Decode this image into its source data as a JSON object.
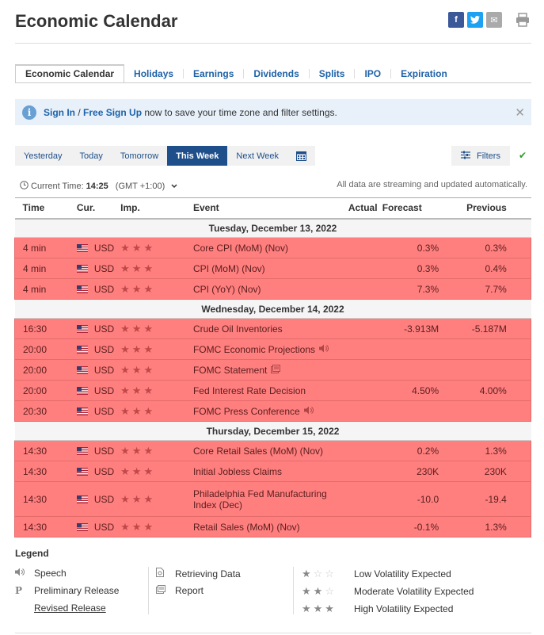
{
  "page": {
    "title": "Economic Calendar"
  },
  "share": {
    "facebook": "f",
    "twitter": "t",
    "email": "✉"
  },
  "tabs": [
    {
      "label": "Economic Calendar"
    },
    {
      "label": "Holidays"
    },
    {
      "label": "Earnings"
    },
    {
      "label": "Dividends"
    },
    {
      "label": "Splits"
    },
    {
      "label": "IPO"
    },
    {
      "label": "Expiration"
    }
  ],
  "notice": {
    "sign_in": "Sign In",
    "slash": " / ",
    "signup": "Free Sign Up",
    "text": " now to save your time zone and filter settings."
  },
  "datebar": [
    {
      "label": "Yesterday"
    },
    {
      "label": "Today"
    },
    {
      "label": "Tomorrow"
    },
    {
      "label": "This Week"
    },
    {
      "label": "Next Week"
    }
  ],
  "filters": {
    "label": "Filters"
  },
  "current_time": {
    "label": "Current Time:",
    "value": "14:25",
    "tz": "(GMT +1:00)"
  },
  "stream_note": "All data are streaming and updated automatically.",
  "columns": {
    "time": "Time",
    "cur": "Cur.",
    "imp": "Imp.",
    "event": "Event",
    "actual": "Actual",
    "forecast": "Forecast",
    "previous": "Previous"
  },
  "days": [
    {
      "date": "Tuesday, December 13, 2022",
      "events": [
        {
          "time": "4 min",
          "cur": "USD",
          "event": "Core CPI (MoM) (Nov)",
          "icon": "",
          "actual": "",
          "forecast": "0.3%",
          "previous": "0.3%"
        },
        {
          "time": "4 min",
          "cur": "USD",
          "event": "CPI (MoM) (Nov)",
          "icon": "",
          "actual": "",
          "forecast": "0.3%",
          "previous": "0.4%"
        },
        {
          "time": "4 min",
          "cur": "USD",
          "event": "CPI (YoY) (Nov)",
          "icon": "",
          "actual": "",
          "forecast": "7.3%",
          "previous": "7.7%"
        }
      ]
    },
    {
      "date": "Wednesday, December 14, 2022",
      "events": [
        {
          "time": "16:30",
          "cur": "USD",
          "event": "Crude Oil Inventories",
          "icon": "",
          "actual": "",
          "forecast": "-3.913M",
          "previous": "-5.187M"
        },
        {
          "time": "20:00",
          "cur": "USD",
          "event": "FOMC Economic Projections",
          "icon": "speech",
          "actual": "",
          "forecast": "",
          "previous": ""
        },
        {
          "time": "20:00",
          "cur": "USD",
          "event": "FOMC Statement",
          "icon": "report",
          "actual": "",
          "forecast": "",
          "previous": ""
        },
        {
          "time": "20:00",
          "cur": "USD",
          "event": "Fed Interest Rate Decision",
          "icon": "",
          "actual": "",
          "forecast": "4.50%",
          "previous": "4.00%"
        },
        {
          "time": "20:30",
          "cur": "USD",
          "event": "FOMC Press Conference",
          "icon": "speech",
          "actual": "",
          "forecast": "",
          "previous": ""
        }
      ]
    },
    {
      "date": "Thursday, December 15, 2022",
      "events": [
        {
          "time": "14:30",
          "cur": "USD",
          "event": "Core Retail Sales (MoM) (Nov)",
          "icon": "",
          "actual": "",
          "forecast": "0.2%",
          "previous": "1.3%"
        },
        {
          "time": "14:30",
          "cur": "USD",
          "event": "Initial Jobless Claims",
          "icon": "",
          "actual": "",
          "forecast": "230K",
          "previous": "230K"
        },
        {
          "time": "14:30",
          "cur": "USD",
          "event": "Philadelphia Fed Manufacturing Index (Dec)",
          "icon": "",
          "actual": "",
          "forecast": "-10.0",
          "previous": "-19.4"
        },
        {
          "time": "14:30",
          "cur": "USD",
          "event": "Retail Sales (MoM) (Nov)",
          "icon": "",
          "actual": "",
          "forecast": "-0.1%",
          "previous": "1.3%"
        }
      ]
    }
  ],
  "legend": {
    "title": "Legend",
    "speech": "Speech",
    "preliminary": "Preliminary Release",
    "revised": "Revised Release",
    "retrieving": "Retrieving Data",
    "report": "Report",
    "low": "Low Volatility Expected",
    "moderate": "Moderate Volatility Expected",
    "high": "High Volatility Expected"
  },
  "colors": {
    "accent": "#1e4f8a",
    "link": "#1e62a8",
    "high_volatility_row": "#ff7f7f"
  }
}
